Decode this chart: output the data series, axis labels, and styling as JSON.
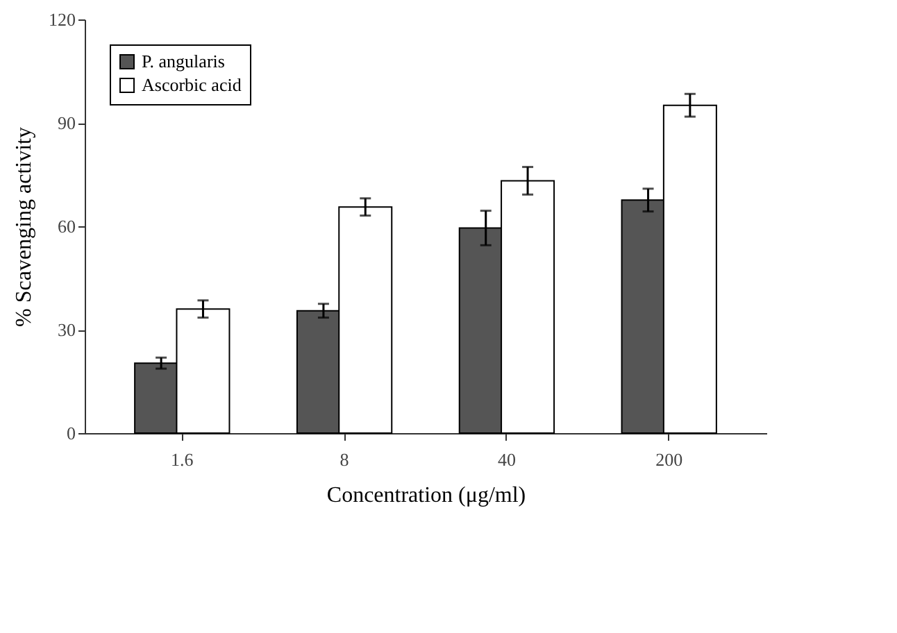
{
  "chart_data": {
    "type": "bar",
    "xlabel": "Concentration (μg/ml)",
    "ylabel": "% Scavenging activity",
    "categories": [
      "1.6",
      "8",
      "40",
      "200"
    ],
    "series": [
      {
        "name": "P. angularis",
        "color": "#555555",
        "values": [
          20.3,
          35.5,
          59.5,
          67.6
        ],
        "errors": [
          1.6,
          2,
          5,
          3.3
        ]
      },
      {
        "name": "Ascorbic acid",
        "color": "#ffffff",
        "values": [
          36.0,
          65.6,
          73.2,
          95.1
        ],
        "errors": [
          2.5,
          2.5,
          4,
          3.3
        ]
      }
    ],
    "ylim": [
      0,
      120
    ],
    "yticks": [
      0,
      30,
      60,
      90,
      120
    ],
    "grid": false,
    "legend": "top left"
  }
}
